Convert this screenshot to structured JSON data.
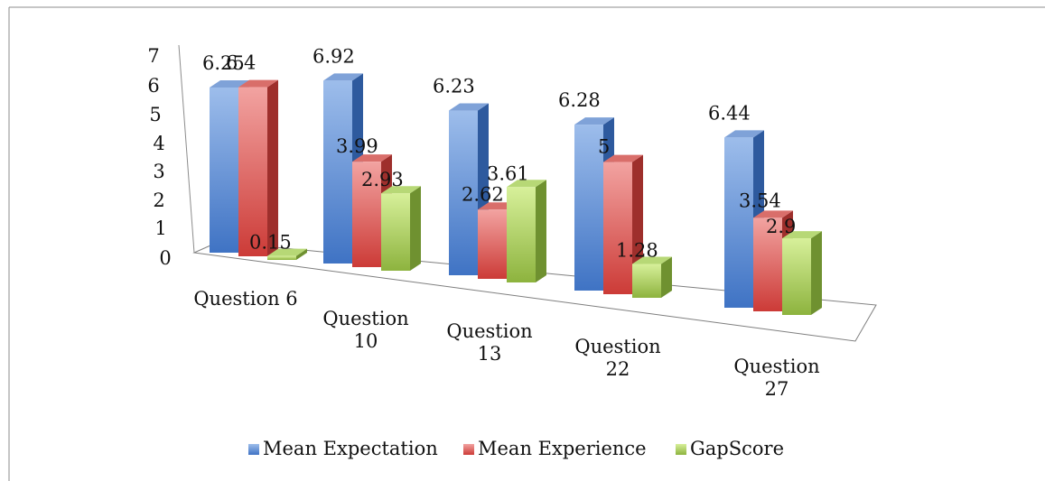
{
  "chart_data": {
    "type": "bar",
    "title": "",
    "xlabel": "",
    "ylabel": "",
    "ylim": [
      0,
      7
    ],
    "y_ticks": [
      "0",
      "1",
      "2",
      "3",
      "4",
      "5",
      "6",
      "7"
    ],
    "categories": [
      [
        "Question 6"
      ],
      [
        "Question",
        "10"
      ],
      [
        "Question",
        "13"
      ],
      [
        "Question",
        "22"
      ],
      [
        "Question",
        "27"
      ]
    ],
    "series": [
      {
        "name": "Mean Expectation",
        "values": [
          6.25,
          6.92,
          6.23,
          6.28,
          6.44
        ],
        "labels": [
          "6.25",
          "6.92",
          "6.23",
          "6.28",
          "6.44"
        ],
        "color": "#4F81BD"
      },
      {
        "name": "Mean Experience",
        "values": [
          6.4,
          3.99,
          2.62,
          5,
          3.54
        ],
        "labels": [
          "6.4",
          "3.99",
          "2.62",
          "5",
          "3.54"
        ],
        "color": "#C0504D"
      },
      {
        "name": "GapScore",
        "values": [
          0.15,
          2.93,
          3.61,
          1.28,
          2.9
        ],
        "labels": [
          "0.15",
          "2.93",
          "3.61",
          "1.28",
          "2.9"
        ],
        "color": "#9BBB59"
      }
    ],
    "legend_position": "bottom",
    "grid": false,
    "style": "3d-clustered-column"
  }
}
